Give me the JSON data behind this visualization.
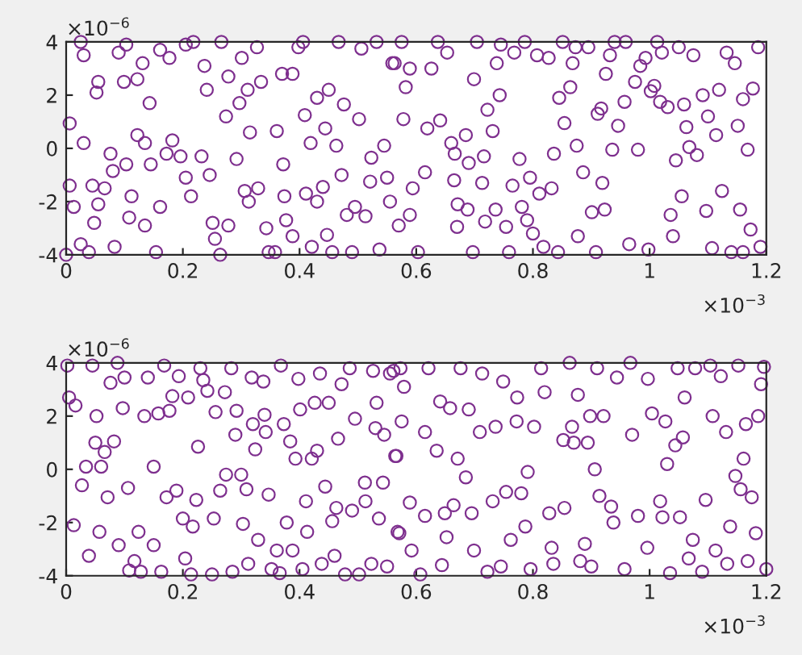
{
  "chart_data": [
    {
      "type": "scatter",
      "color": "#7e2f8e",
      "marker": "circle",
      "grid": false,
      "xlim": [
        0,
        1.2
      ],
      "ylim": [
        -4,
        4
      ],
      "xticks": [
        0,
        0.2,
        0.4,
        0.6,
        0.8,
        1,
        1.2
      ],
      "yticks": [
        -4,
        -2,
        0,
        2,
        4
      ],
      "annotations": [
        "×10$^{−6}$",
        "×10$^{−3}$"
      ],
      "x": [
        0.006,
        0.006,
        0.013,
        0.03,
        0.025,
        0.03,
        0.0,
        0.025,
        0.039,
        0.048,
        0.045,
        0.052,
        0.055,
        0.066,
        0.055,
        0.076,
        0.08,
        0.083,
        0.09,
        0.103,
        0.099,
        0.103,
        0.108,
        0.112,
        0.122,
        0.131,
        0.122,
        0.135,
        0.145,
        0.143,
        0.135,
        0.154,
        0.161,
        0.161,
        0.177,
        0.182,
        0.172,
        0.196,
        0.205,
        0.218,
        0.205,
        0.214,
        0.232,
        0.237,
        0.241,
        0.246,
        0.251,
        0.255,
        0.264,
        0.266,
        0.274,
        0.278,
        0.278,
        0.292,
        0.297,
        0.301,
        0.306,
        0.311,
        0.315,
        0.313,
        0.327,
        0.334,
        0.329,
        0.343,
        0.347,
        0.358,
        0.361,
        0.37,
        0.372,
        0.374,
        0.377,
        0.388,
        0.388,
        0.398,
        0.406,
        0.409,
        0.419,
        0.411,
        0.421,
        0.43,
        0.43,
        0.44,
        0.444,
        0.447,
        0.45,
        0.456,
        0.463,
        0.467,
        0.472,
        0.476,
        0.481,
        0.49,
        0.495,
        0.502,
        0.506,
        0.513,
        0.523,
        0.521,
        0.532,
        0.537,
        0.545,
        0.55,
        0.555,
        0.559,
        0.575,
        0.563,
        0.589,
        0.582,
        0.578,
        0.594,
        0.589,
        0.57,
        0.603,
        0.615,
        0.619,
        0.626,
        0.637,
        0.641,
        0.653,
        0.66,
        0.666,
        0.665,
        0.671,
        0.67,
        0.688,
        0.685,
        0.69,
        0.699,
        0.697,
        0.704,
        0.716,
        0.713,
        0.718,
        0.722,
        0.731,
        0.736,
        0.743,
        0.738,
        0.745,
        0.759,
        0.754,
        0.765,
        0.768,
        0.777,
        0.781,
        0.786,
        0.79,
        0.795,
        0.8,
        0.807,
        0.811,
        0.818,
        0.827,
        0.832,
        0.836,
        0.843,
        0.845,
        0.854,
        0.851,
        0.864,
        0.868,
        0.873,
        0.875,
        0.877,
        0.886,
        0.895,
        0.901,
        0.908,
        0.911,
        0.917,
        0.919,
        0.923,
        0.925,
        0.932,
        0.936,
        0.94,
        0.946,
        0.957,
        0.959,
        0.965,
        0.975,
        0.98,
        0.984,
        0.993,
        0.998,
        1.002,
        1.008,
        1.013,
        1.018,
        1.021,
        1.031,
        1.04,
        1.036,
        1.045,
        1.055,
        1.05,
        1.059,
        1.063,
        1.068,
        1.075,
        1.081,
        1.091,
        1.097,
        1.1,
        1.107,
        1.114,
        1.119,
        1.124,
        1.132,
        1.146,
        1.151,
        1.155,
        1.16,
        1.168,
        1.173,
        1.177,
        1.186,
        1.19,
        1.14,
        1.16
      ],
      "values": [
        0.94,
        -1.4,
        -2.2,
        3.5,
        4.0,
        0.2,
        -4.0,
        -3.6,
        -3.9,
        -2.8,
        -1.4,
        2.1,
        2.5,
        -1.5,
        -2.1,
        -0.2,
        -0.85,
        -3.7,
        3.6,
        3.9,
        2.5,
        -0.6,
        -2.6,
        -1.8,
        2.6,
        3.2,
        0.5,
        0.2,
        -0.6,
        1.7,
        -2.9,
        -3.9,
        -2.2,
        3.7,
        3.4,
        0.3,
        -0.2,
        -0.3,
        3.9,
        4.0,
        -1.1,
        -1.8,
        -0.3,
        3.1,
        2.2,
        -1.0,
        -2.8,
        -3.4,
        -4.0,
        4.0,
        1.2,
        2.7,
        -2.9,
        -0.4,
        1.7,
        3.4,
        -1.6,
        2.2,
        0.6,
        -2.0,
        3.8,
        2.5,
        -1.5,
        -3.0,
        -3.9,
        -3.9,
        0.65,
        2.8,
        -0.6,
        -1.8,
        -2.7,
        -3.3,
        2.8,
        3.8,
        4.0,
        1.25,
        0.2,
        -1.7,
        -3.7,
        1.9,
        -2.0,
        -1.45,
        0.75,
        -3.25,
        2.2,
        -3.9,
        0.1,
        4.0,
        -1.0,
        1.65,
        -2.5,
        -3.9,
        -2.2,
        1.1,
        3.75,
        -2.55,
        -0.35,
        -1.25,
        4.0,
        -3.8,
        0.1,
        -1.1,
        -2.0,
        3.2,
        4.0,
        3.2,
        3.0,
        2.3,
        1.1,
        -1.5,
        -2.5,
        -2.9,
        -3.9,
        -0.9,
        0.75,
        3.0,
        4.0,
        1.05,
        3.6,
        0.2,
        -0.2,
        -1.2,
        -2.1,
        -2.95,
        -2.3,
        0.5,
        -0.55,
        2.6,
        -3.9,
        4.0,
        -0.3,
        -1.3,
        -2.75,
        1.45,
        0.65,
        -2.3,
        2.0,
        3.2,
        3.9,
        -3.9,
        -2.95,
        -1.4,
        3.6,
        -0.4,
        -2.2,
        4.0,
        -2.7,
        -1.1,
        -3.2,
        3.5,
        -1.7,
        -3.7,
        3.4,
        -1.5,
        -0.2,
        -3.9,
        1.9,
        0.95,
        4.0,
        2.3,
        3.2,
        3.8,
        0.1,
        -3.3,
        -0.9,
        3.8,
        -2.4,
        -3.9,
        1.3,
        1.5,
        -1.3,
        -2.3,
        2.8,
        3.5,
        -0.05,
        4.0,
        0.85,
        1.75,
        4.0,
        -3.6,
        2.5,
        -0.05,
        3.1,
        3.4,
        -3.8,
        2.15,
        2.35,
        4.0,
        1.75,
        3.6,
        1.55,
        -3.3,
        -2.5,
        -0.45,
        -1.8,
        3.8,
        1.65,
        0.8,
        0.05,
        3.5,
        -0.25,
        2.0,
        -2.35,
        1.2,
        -3.75,
        0.5,
        2.2,
        -1.6,
        3.6,
        3.2,
        0.85,
        -2.3,
        1.85,
        -0.05,
        -3.05,
        2.25,
        3.8,
        -3.7,
        -3.9,
        -3.9
      ]
    },
    {
      "type": "scatter",
      "color": "#7e2f8e",
      "marker": "circle",
      "grid": false,
      "xlim": [
        0,
        1.2
      ],
      "ylim": [
        -4,
        4
      ],
      "xticks": [
        0,
        0.2,
        0.4,
        0.6,
        0.8,
        1,
        1.2
      ],
      "yticks": [
        -4,
        -2,
        0,
        2,
        4
      ],
      "annotations": [
        "×10$^{−6}$",
        "×10$^{−3}$"
      ],
      "x": [
        0.002,
        0.005,
        0.016,
        0.013,
        0.027,
        0.034,
        0.039,
        0.045,
        0.05,
        0.052,
        0.057,
        0.06,
        0.066,
        0.071,
        0.076,
        0.082,
        0.088,
        0.09,
        0.097,
        0.1,
        0.106,
        0.108,
        0.117,
        0.124,
        0.128,
        0.134,
        0.14,
        0.15,
        0.15,
        0.158,
        0.163,
        0.168,
        0.172,
        0.177,
        0.182,
        0.189,
        0.193,
        0.2,
        0.204,
        0.209,
        0.214,
        0.217,
        0.223,
        0.226,
        0.23,
        0.235,
        0.242,
        0.25,
        0.253,
        0.256,
        0.264,
        0.272,
        0.274,
        0.283,
        0.285,
        0.29,
        0.292,
        0.3,
        0.303,
        0.309,
        0.312,
        0.318,
        0.32,
        0.324,
        0.329,
        0.338,
        0.34,
        0.342,
        0.347,
        0.352,
        0.361,
        0.366,
        0.368,
        0.373,
        0.378,
        0.384,
        0.388,
        0.393,
        0.398,
        0.401,
        0.405,
        0.411,
        0.413,
        0.421,
        0.426,
        0.43,
        0.435,
        0.438,
        0.444,
        0.45,
        0.456,
        0.46,
        0.463,
        0.466,
        0.472,
        0.478,
        0.486,
        0.49,
        0.495,
        0.502,
        0.512,
        0.513,
        0.523,
        0.526,
        0.532,
        0.53,
        0.536,
        0.543,
        0.545,
        0.55,
        0.555,
        0.564,
        0.568,
        0.573,
        0.561,
        0.579,
        0.575,
        0.566,
        0.589,
        0.571,
        0.592,
        0.607,
        0.615,
        0.615,
        0.621,
        0.635,
        0.641,
        0.644,
        0.649,
        0.652,
        0.658,
        0.664,
        0.671,
        0.676,
        0.685,
        0.69,
        0.695,
        0.699,
        0.709,
        0.713,
        0.722,
        0.731,
        0.736,
        0.745,
        0.749,
        0.754,
        0.762,
        0.772,
        0.773,
        0.78,
        0.787,
        0.791,
        0.796,
        0.802,
        0.814,
        0.82,
        0.828,
        0.832,
        0.835,
        0.852,
        0.854,
        0.863,
        0.867,
        0.87,
        0.877,
        0.881,
        0.889,
        0.894,
        0.898,
        0.9,
        0.906,
        0.91,
        0.914,
        0.921,
        0.934,
        0.938,
        0.944,
        0.957,
        0.967,
        0.97,
        0.98,
        0.996,
        0.997,
        1.004,
        1.018,
        1.022,
        1.027,
        1.03,
        1.035,
        1.044,
        1.048,
        1.052,
        1.057,
        1.06,
        1.067,
        1.074,
        1.078,
        1.09,
        1.096,
        1.104,
        1.108,
        1.113,
        1.122,
        1.131,
        1.133,
        1.138,
        1.147,
        1.152,
        1.156,
        1.161,
        1.165,
        1.175,
        1.182,
        1.186,
        1.191,
        1.196,
        1.2,
        1.168
      ],
      "values": [
        3.9,
        2.7,
        2.4,
        -2.1,
        -0.6,
        0.1,
        -3.25,
        3.9,
        1.0,
        2.0,
        -2.35,
        0.1,
        0.65,
        -1.05,
        3.25,
        1.05,
        4.0,
        -2.85,
        2.3,
        3.45,
        -0.7,
        -3.8,
        -3.45,
        -2.35,
        -3.85,
        2.0,
        3.45,
        0.1,
        -2.85,
        2.1,
        -3.85,
        3.9,
        -1.05,
        2.2,
        2.75,
        -0.8,
        3.5,
        -1.85,
        -3.35,
        2.7,
        -3.95,
        -2.15,
        -1.15,
        0.85,
        3.8,
        3.35,
        2.95,
        -3.95,
        -1.85,
        2.15,
        -0.8,
        2.9,
        -0.2,
        3.8,
        -3.85,
        1.3,
        2.2,
        -0.2,
        -2.05,
        -0.75,
        -3.55,
        3.45,
        1.7,
        0.75,
        -2.65,
        3.3,
        2.05,
        1.4,
        -0.95,
        -3.75,
        -3.05,
        -3.9,
        3.9,
        1.7,
        -2.0,
        1.05,
        -3.05,
        0.4,
        3.4,
        2.25,
        -3.75,
        -1.2,
        -2.35,
        0.4,
        2.5,
        0.7,
        3.6,
        -3.55,
        -0.65,
        2.5,
        -1.95,
        -3.25,
        -1.45,
        1.15,
        3.2,
        -3.95,
        3.8,
        -1.55,
        1.9,
        -3.95,
        -0.5,
        -1.2,
        -3.55,
        3.7,
        2.5,
        1.55,
        -1.85,
        -0.5,
        1.3,
        -3.65,
        3.6,
        0.5,
        -2.35,
        3.8,
        3.7,
        3.1,
        1.8,
        0.5,
        -1.25,
        -2.4,
        -3.05,
        -3.95,
        -1.75,
        1.4,
        3.8,
        0.7,
        2.55,
        -3.6,
        -1.65,
        -2.55,
        2.3,
        -1.35,
        0.4,
        3.8,
        -0.3,
        2.25,
        -1.65,
        -3.05,
        1.4,
        3.6,
        -3.85,
        -1.2,
        1.6,
        -3.65,
        3.3,
        -0.85,
        -2.65,
        1.8,
        2.7,
        -0.9,
        -2.15,
        -0.1,
        -3.75,
        1.6,
        3.8,
        2.9,
        -1.65,
        -2.95,
        -3.55,
        1.1,
        -1.45,
        4.0,
        1.6,
        1.0,
        2.8,
        -3.45,
        -2.8,
        1.0,
        2.0,
        -3.65,
        0.0,
        3.8,
        -1.0,
        2.0,
        -1.4,
        -2.0,
        3.45,
        -3.75,
        4.0,
        1.3,
        -1.75,
        -2.95,
        3.4,
        2.1,
        -1.2,
        -1.8,
        1.8,
        0.2,
        -3.9,
        0.9,
        3.8,
        -1.8,
        1.2,
        2.7,
        -3.35,
        -2.65,
        3.8,
        -3.85,
        -1.15,
        3.9,
        2.0,
        -3.05,
        3.5,
        1.4,
        -3.55,
        -2.15,
        -0.25,
        3.9,
        -0.75,
        0.4,
        1.7,
        -1.05,
        -2.4,
        2.0,
        3.2,
        3.85,
        -3.75,
        -3.45
      ]
    }
  ]
}
